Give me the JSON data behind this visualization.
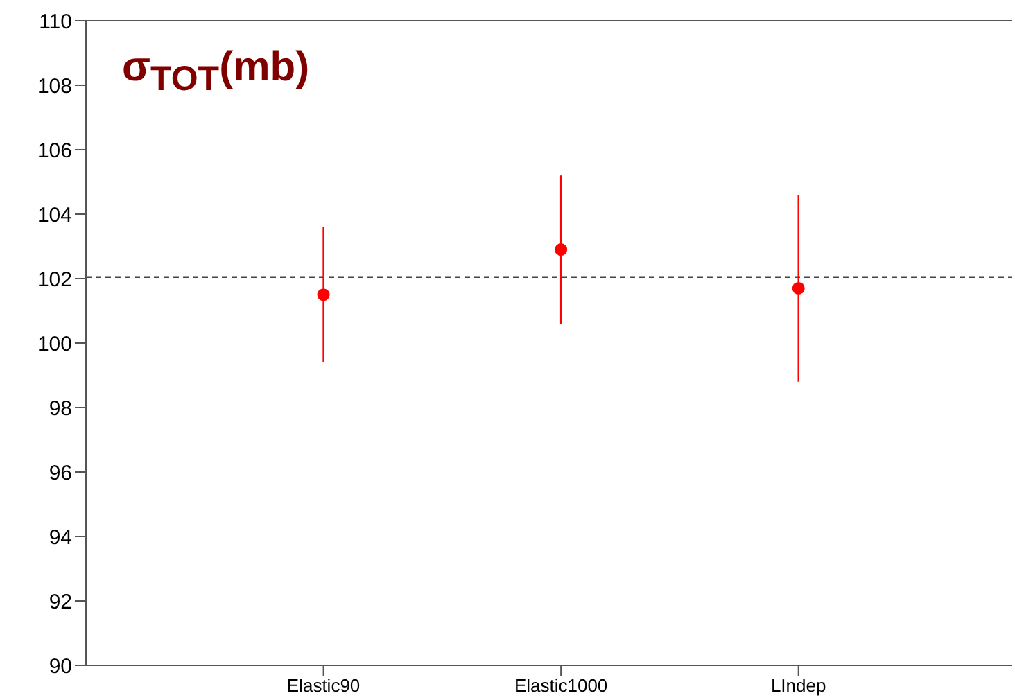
{
  "chart_data": {
    "type": "scatter",
    "title": "σ$_{TOT}$(mb)",
    "categories": [
      "Elastic90",
      "Elastic1000",
      "LIndep"
    ],
    "series": [
      {
        "color": "#ff0000",
        "values": [
          101.5,
          102.9,
          101.7
        ],
        "errors": [
          2.1,
          2.3,
          2.9
        ]
      }
    ],
    "marker": "circle",
    "ylim": [
      90,
      110
    ],
    "yticks": [
      90,
      92,
      94,
      96,
      98,
      100,
      102,
      104,
      106,
      108,
      110
    ],
    "grid": false,
    "ref_lines": [
      {
        "axis": "y",
        "value": 102.05,
        "color": "#444444",
        "line_style": "dashed"
      }
    ]
  }
}
